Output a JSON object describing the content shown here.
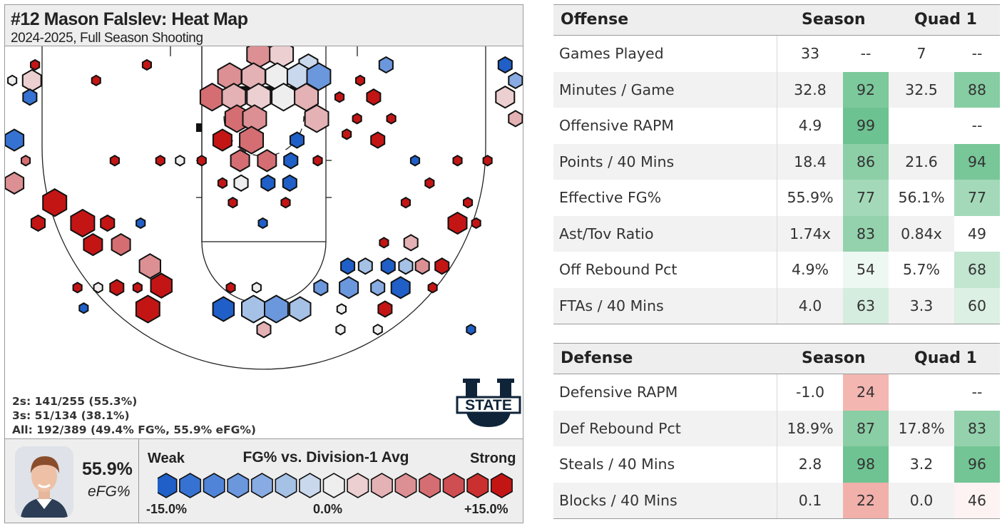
{
  "header": {
    "title": "#12 Mason Falslev: Heat Map",
    "subtitle": "2024-2025, Full Season Shooting"
  },
  "shooting_lines": [
    "2s: 141/255 (55.3%)",
    "3s: 51/134 (38.1%)",
    "All: 192/389 (49.4% FG%, 55.9% eFG%)"
  ],
  "logo": {
    "line1": "STATE",
    "icon": "utah-state-u-logo"
  },
  "player_summary": {
    "value": "55.9%",
    "label": "eFG%",
    "icon": "player-headshot"
  },
  "legend": {
    "weak": "Weak",
    "title": "FG% vs. Division-1 Avg",
    "strong": "Strong",
    "min": "-15.0%",
    "mid": "0.0%",
    "max": "+15.0%",
    "colors": [
      "#1f5fc7",
      "#3672d1",
      "#4f84d8",
      "#6b97dd",
      "#87abe2",
      "#a6c1e6",
      "#c9d8ec",
      "#eeeeee",
      "#eccfd1",
      "#e4b1b4",
      "#dc9093",
      "#d56e72",
      "#cf4e52",
      "#c9302f",
      "#c41515"
    ]
  },
  "chart_data": {
    "type": "heatmap",
    "title": "#12 Mason Falslev: Heat Map",
    "subtitle": "2024-2025, Full Season Shooting",
    "scale": {
      "min": -15.0,
      "max": 15.0,
      "unit": "% FG vs. Division-1 Avg"
    },
    "x_range": [
      -25,
      25
    ],
    "y_range": [
      0,
      40
    ],
    "hexes": [
      {
        "x": -22.1,
        "y": 1.9,
        "size": 0.35,
        "value": 15
      },
      {
        "x": -11.3,
        "y": 1.9,
        "size": 0.35,
        "value": 15
      },
      {
        "x": -0.5,
        "y": 0.8,
        "size": 0.95,
        "value": 6
      },
      {
        "x": 1.7,
        "y": 0.8,
        "size": 0.95,
        "value": 3
      },
      {
        "x": 4.3,
        "y": 1.9,
        "size": 0.75,
        "value": -3
      },
      {
        "x": 11.8,
        "y": 1.9,
        "size": 0.55,
        "value": -9
      },
      {
        "x": 23.3,
        "y": 1.9,
        "size": 0.55,
        "value": -15
      },
      {
        "x": -24.3,
        "y": 3.5,
        "size": 0.35,
        "value": 0
      },
      {
        "x": -22.4,
        "y": 3.5,
        "size": 0.75,
        "value": 3
      },
      {
        "x": -16.2,
        "y": 3.5,
        "size": 0.35,
        "value": 15
      },
      {
        "x": -3.3,
        "y": 3.1,
        "size": 0.95,
        "value": 7
      },
      {
        "x": -1.0,
        "y": 3.1,
        "size": 0.95,
        "value": 4
      },
      {
        "x": 1.3,
        "y": 3.1,
        "size": 0.95,
        "value": 1
      },
      {
        "x": 3.4,
        "y": 3.1,
        "size": 0.95,
        "value": -3
      },
      {
        "x": 5.3,
        "y": 3.1,
        "size": 0.95,
        "value": -8
      },
      {
        "x": 9.3,
        "y": 3.5,
        "size": 0.35,
        "value": 15
      },
      {
        "x": 24.3,
        "y": 3.5,
        "size": 0.55,
        "value": -6
      },
      {
        "x": -22.6,
        "y": 5.2,
        "size": 0.55,
        "value": -12
      },
      {
        "x": -5.0,
        "y": 5.2,
        "size": 0.95,
        "value": 8
      },
      {
        "x": -2.9,
        "y": 5.2,
        "size": 0.95,
        "value": 5
      },
      {
        "x": -0.5,
        "y": 5.2,
        "size": 0.95,
        "value": 2
      },
      {
        "x": 1.9,
        "y": 5.2,
        "size": 0.95,
        "value": 0
      },
      {
        "x": 4.1,
        "y": 5.2,
        "size": 0.95,
        "value": 4
      },
      {
        "x": 7.3,
        "y": 5.2,
        "size": 0.35,
        "value": 15
      },
      {
        "x": 10.6,
        "y": 5.2,
        "size": 0.55,
        "value": 15
      },
      {
        "x": 23.3,
        "y": 5.2,
        "size": 0.75,
        "value": 2
      },
      {
        "x": -2.6,
        "y": 7.4,
        "size": 0.95,
        "value": 9
      },
      {
        "x": -0.9,
        "y": 7.4,
        "size": 0.95,
        "value": 7
      },
      {
        "x": 5.1,
        "y": 7.4,
        "size": 0.95,
        "value": 5
      },
      {
        "x": 9.0,
        "y": 7.4,
        "size": 0.35,
        "value": 15
      },
      {
        "x": 12.3,
        "y": 7.4,
        "size": 0.35,
        "value": 15
      },
      {
        "x": 24.3,
        "y": 7.4,
        "size": 0.55,
        "value": 5
      },
      {
        "x": -24.1,
        "y": 9.6,
        "size": 0.75,
        "value": -12
      },
      {
        "x": -4.0,
        "y": 9.6,
        "size": 0.75,
        "value": 15
      },
      {
        "x": -1.2,
        "y": 9.6,
        "size": 0.95,
        "value": 8
      },
      {
        "x": 3.2,
        "y": 9.6,
        "size": 0.55,
        "value": -15
      },
      {
        "x": 8.0,
        "y": 9.0,
        "size": 0.35,
        "value": 15
      },
      {
        "x": 11.0,
        "y": 9.6,
        "size": 0.55,
        "value": 15
      },
      {
        "x": -23.0,
        "y": 11.7,
        "size": 0.35,
        "value": 8
      },
      {
        "x": -14.4,
        "y": 11.7,
        "size": 0.35,
        "value": 15
      },
      {
        "x": -10.0,
        "y": 11.7,
        "size": 0.35,
        "value": 15
      },
      {
        "x": -8.1,
        "y": 11.7,
        "size": 0.35,
        "value": 0
      },
      {
        "x": -6.0,
        "y": 11.7,
        "size": 0.35,
        "value": 15
      },
      {
        "x": -2.3,
        "y": 11.7,
        "size": 0.75,
        "value": 8
      },
      {
        "x": 0.3,
        "y": 11.7,
        "size": 0.75,
        "value": 8
      },
      {
        "x": 2.6,
        "y": 11.7,
        "size": 0.55,
        "value": -15
      },
      {
        "x": 5.2,
        "y": 11.7,
        "size": 0.35,
        "value": 15
      },
      {
        "x": 14.6,
        "y": 11.7,
        "size": 0.35,
        "value": -15
      },
      {
        "x": 18.7,
        "y": 11.7,
        "size": 0.35,
        "value": 15
      },
      {
        "x": 21.6,
        "y": 11.7,
        "size": 0.35,
        "value": 15
      },
      {
        "x": -24.1,
        "y": 14.0,
        "size": 0.75,
        "value": 7
      },
      {
        "x": -4.0,
        "y": 14.0,
        "size": 0.35,
        "value": 15
      },
      {
        "x": -2.2,
        "y": 14.0,
        "size": 0.55,
        "value": 0
      },
      {
        "x": 0.4,
        "y": 14.0,
        "size": 0.55,
        "value": -15
      },
      {
        "x": 2.5,
        "y": 14.0,
        "size": 0.55,
        "value": -15
      },
      {
        "x": 16.0,
        "y": 14.0,
        "size": 0.35,
        "value": 15
      },
      {
        "x": -3.0,
        "y": 16.0,
        "size": 0.35,
        "value": 15
      },
      {
        "x": 2.1,
        "y": 16.0,
        "size": 0.35,
        "value": 15
      },
      {
        "x": 13.7,
        "y": 16.0,
        "size": 0.35,
        "value": 15
      },
      {
        "x": 19.7,
        "y": 16.0,
        "size": 0.35,
        "value": 15
      },
      {
        "x": -20.2,
        "y": 16.0,
        "size": 0.95,
        "value": 15
      },
      {
        "x": -21.8,
        "y": 18.1,
        "size": 0.55,
        "value": 15
      },
      {
        "x": -17.5,
        "y": 18.1,
        "size": 0.95,
        "value": 15
      },
      {
        "x": -15.1,
        "y": 18.1,
        "size": 0.55,
        "value": 15
      },
      {
        "x": -11.9,
        "y": 18.1,
        "size": 0.35,
        "value": -15
      },
      {
        "x": -0.1,
        "y": 18.1,
        "size": 0.35,
        "value": -15
      },
      {
        "x": 18.7,
        "y": 18.1,
        "size": 0.75,
        "value": 15
      },
      {
        "x": 20.5,
        "y": 18.1,
        "size": 0.35,
        "value": 15
      },
      {
        "x": -16.5,
        "y": 20.3,
        "size": 0.75,
        "value": 15
      },
      {
        "x": -13.8,
        "y": 20.3,
        "size": 0.75,
        "value": 8
      },
      {
        "x": 11.6,
        "y": 20.1,
        "size": 0.35,
        "value": 15
      },
      {
        "x": 14.2,
        "y": 20.1,
        "size": 0.55,
        "value": 5
      },
      {
        "x": -11.0,
        "y": 22.5,
        "size": 0.85,
        "value": 7
      },
      {
        "x": 8.1,
        "y": 22.5,
        "size": 0.55,
        "value": -15
      },
      {
        "x": 9.8,
        "y": 22.5,
        "size": 0.55,
        "value": -4
      },
      {
        "x": 12.0,
        "y": 22.5,
        "size": 0.55,
        "value": -15
      },
      {
        "x": 13.7,
        "y": 22.5,
        "size": 0.55,
        "value": -5
      },
      {
        "x": 15.3,
        "y": 22.5,
        "size": 0.55,
        "value": 6
      },
      {
        "x": 17.2,
        "y": 22.5,
        "size": 0.55,
        "value": 15
      },
      {
        "x": -18.0,
        "y": 24.7,
        "size": 0.35,
        "value": 15
      },
      {
        "x": -16.0,
        "y": 24.7,
        "size": 0.35,
        "value": 0
      },
      {
        "x": -14.2,
        "y": 24.7,
        "size": 0.55,
        "value": 15
      },
      {
        "x": -12.2,
        "y": 24.7,
        "size": 0.35,
        "value": 15
      },
      {
        "x": -9.9,
        "y": 24.5,
        "size": 0.85,
        "value": 15
      },
      {
        "x": -3.2,
        "y": 24.7,
        "size": 0.35,
        "value": 15
      },
      {
        "x": -0.7,
        "y": 24.7,
        "size": 0.35,
        "value": 0
      },
      {
        "x": 5.5,
        "y": 24.7,
        "size": 0.55,
        "value": -8
      },
      {
        "x": 8.2,
        "y": 24.7,
        "size": 0.75,
        "value": -9
      },
      {
        "x": 11.0,
        "y": 24.7,
        "size": 0.55,
        "value": -6
      },
      {
        "x": 13.2,
        "y": 24.7,
        "size": 0.75,
        "value": -15
      },
      {
        "x": 16.3,
        "y": 24.7,
        "size": 0.35,
        "value": 15
      },
      {
        "x": -17.4,
        "y": 26.8,
        "size": 0.35,
        "value": -15
      },
      {
        "x": -11.2,
        "y": 26.9,
        "size": 0.95,
        "value": 15
      },
      {
        "x": -3.9,
        "y": 26.9,
        "size": 0.85,
        "value": -15
      },
      {
        "x": -1.0,
        "y": 26.9,
        "size": 0.95,
        "value": -4
      },
      {
        "x": 1.2,
        "y": 26.9,
        "size": 0.95,
        "value": -9
      },
      {
        "x": 3.5,
        "y": 26.9,
        "size": 0.85,
        "value": -5
      },
      {
        "x": 7.5,
        "y": 26.9,
        "size": 0.35,
        "value": 0
      },
      {
        "x": 11.7,
        "y": 26.9,
        "size": 0.55,
        "value": 15
      },
      {
        "x": 0.0,
        "y": 29.0,
        "size": 0.55,
        "value": 5
      },
      {
        "x": 7.4,
        "y": 29.0,
        "size": 0.35,
        "value": 0
      },
      {
        "x": 11.0,
        "y": 29.0,
        "size": 0.35,
        "value": 0
      },
      {
        "x": 20.0,
        "y": 29.0,
        "size": 0.35,
        "value": -15
      }
    ]
  },
  "offense": {
    "header": {
      "label": "Offense",
      "col_season": "Season",
      "col_quad": "Quad 1"
    },
    "rows": [
      {
        "label": "Games Played",
        "s_val": "33",
        "s_pct": "--",
        "q_val": "7",
        "q_pct": "--",
        "s_color": "#ffffff",
        "q_color": "#ffffff"
      },
      {
        "label": "Minutes / Game",
        "s_val": "32.8",
        "s_pct": "92",
        "q_val": "32.5",
        "q_pct": "88",
        "s_color": "#7cc99c",
        "q_color": "#86cda3"
      },
      {
        "label": "Offensive RAPM",
        "s_val": "4.9",
        "s_pct": "99",
        "q_val": "",
        "q_pct": "--",
        "s_color": "#6dc291",
        "q_color": "#ffffff"
      },
      {
        "label": "Points / 40 Mins",
        "s_val": "18.4",
        "s_pct": "86",
        "q_val": "21.6",
        "q_pct": "94",
        "s_color": "#8ccfa7",
        "q_color": "#78c799"
      },
      {
        "label": "Effective FG%",
        "s_val": "55.9%",
        "s_pct": "77",
        "q_val": "56.1%",
        "q_pct": "77",
        "s_color": "#a3d9b9",
        "q_color": "#a3d9b9"
      },
      {
        "label": "Ast/Tov Ratio",
        "s_val": "1.74x",
        "s_pct": "83",
        "q_val": "0.84x",
        "q_pct": "49",
        "s_color": "#93d2ad",
        "q_color": "#ffffff"
      },
      {
        "label": "Off Rebound Pct",
        "s_val": "4.9%",
        "s_pct": "54",
        "q_val": "5.7%",
        "q_pct": "68",
        "s_color": "#eef8f2",
        "q_color": "#c2e6d0"
      },
      {
        "label": "FTAs / 40 Mins",
        "s_val": "4.0",
        "s_pct": "63",
        "q_val": "3.3",
        "q_pct": "60",
        "s_color": "#d5eddf",
        "q_color": "#dcf0e4"
      }
    ]
  },
  "defense": {
    "header": {
      "label": "Defense",
      "col_season": "Season",
      "col_quad": "Quad 1"
    },
    "rows": [
      {
        "label": "Defensive RAPM",
        "s_val": "-1.0",
        "s_pct": "24",
        "q_val": "",
        "q_pct": "--",
        "s_color": "#f4b6b1",
        "q_color": "#ffffff"
      },
      {
        "label": "Def Rebound Pct",
        "s_val": "18.9%",
        "s_pct": "87",
        "q_val": "17.8%",
        "q_pct": "83",
        "s_color": "#8ace a5",
        "q_color": "#93d2ad"
      },
      {
        "label": "Steals / 40 Mins",
        "s_val": "2.8",
        "s_pct": "98",
        "q_val": "3.2",
        "q_pct": "96",
        "s_color": "#6fc392",
        "q_color": "#73c595"
      },
      {
        "label": "Blocks / 40 Mins",
        "s_val": "0.1",
        "s_pct": "22",
        "q_val": "0.0",
        "q_pct": "46",
        "s_color": "#f2b0ab",
        "q_color": "#fdf3f2"
      }
    ]
  }
}
